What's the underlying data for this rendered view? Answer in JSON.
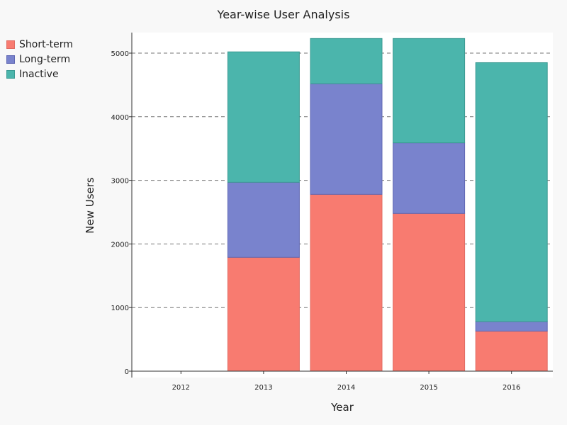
{
  "chart_data": {
    "type": "bar",
    "stacked": true,
    "title": "Year-wise User Analysis",
    "xlabel": "Year",
    "ylabel": "New Users",
    "categories": [
      "2012",
      "2013",
      "2014",
      "2015",
      "2016"
    ],
    "yticks": [
      "0",
      "1000",
      "2000",
      "3000",
      "4000",
      "5000"
    ],
    "ylim": [
      0,
      5350
    ],
    "grid": "horizontal dashed",
    "legend_position": "top-left",
    "series": [
      {
        "name": "Short-term",
        "color": "#f87b70",
        "border": "#e06b62",
        "values": [
          0,
          1790,
          2780,
          2480,
          630
        ]
      },
      {
        "name": "Long-term",
        "color": "#7983cd",
        "border": "#5f67b3",
        "values": [
          0,
          1180,
          1740,
          1110,
          150
        ]
      },
      {
        "name": "Inactive",
        "color": "#4bb5ac",
        "border": "#3a9a92",
        "values": [
          0,
          2050,
          710,
          1640,
          4070
        ]
      }
    ]
  }
}
